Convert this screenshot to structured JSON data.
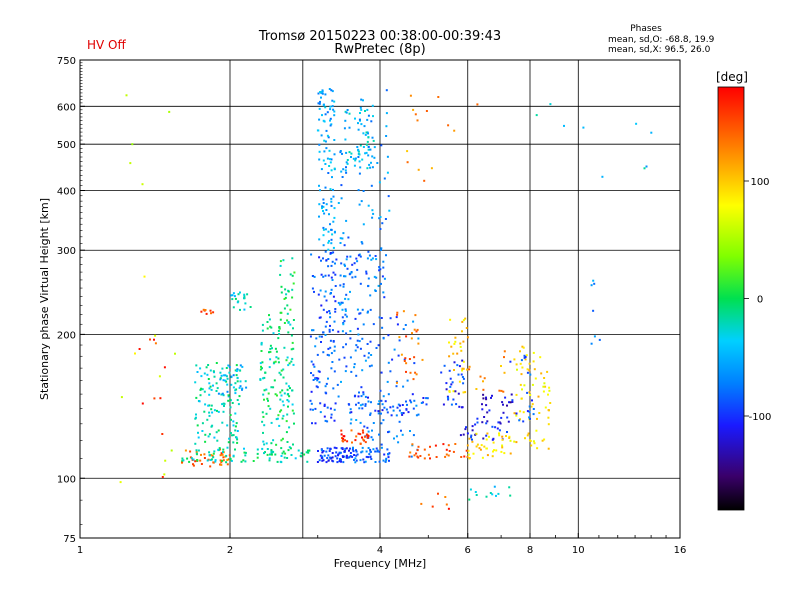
{
  "header": {
    "title": "Tromsø 20150223 00:38:00-00:39:43",
    "subtitle": "RwPretec (8p)",
    "status": "HV Off",
    "status_color": "#e00000",
    "phases_title": "Phases",
    "phases_o": "mean, sd,O: -68.8, 19.9",
    "phases_x": "mean, sd,X:  96.5, 26.0"
  },
  "colorbar": {
    "unit": "[deg]",
    "min": -180,
    "max": 180,
    "ticks": [
      {
        "value": 100,
        "label": "100"
      },
      {
        "value": 0,
        "label": "0"
      },
      {
        "value": -100,
        "label": "-100"
      }
    ]
  },
  "chart_data": {
    "type": "scatter",
    "xlabel": "Frequency [MHz]",
    "ylabel": "Stationary phase Virtual Height [km]",
    "xscale": "log",
    "yscale": "log",
    "xlim": [
      1,
      16
    ],
    "ylim": [
      75,
      750
    ],
    "xticks": [
      {
        "value": 1,
        "label": "1"
      },
      {
        "value": 2,
        "label": "2"
      },
      {
        "value": 4,
        "label": "4"
      },
      {
        "value": 6,
        "label": "6"
      },
      {
        "value": 8,
        "label": "8"
      },
      {
        "value": 10,
        "label": "10"
      },
      {
        "value": 16,
        "label": "16"
      }
    ],
    "xgrid": [
      2,
      2.8,
      4,
      6,
      8,
      10
    ],
    "yticks": [
      {
        "value": 75,
        "label": "75"
      },
      {
        "value": 100,
        "label": "100"
      },
      {
        "value": 200,
        "label": "200"
      },
      {
        "value": 300,
        "label": "300"
      },
      {
        "value": 400,
        "label": "400"
      },
      {
        "value": 500,
        "label": "500"
      },
      {
        "value": 600,
        "label": "600"
      },
      {
        "value": 750,
        "label": "750"
      }
    ],
    "ygrid": [
      100,
      200,
      300,
      400,
      500,
      600
    ],
    "grid": true,
    "point_color_scale": "phase [deg]",
    "clusters": [
      {
        "fmin": 1.6,
        "fmax": 2.0,
        "hmin": 105,
        "hmax": 115,
        "phase": 140,
        "n": 40
      },
      {
        "fmin": 1.6,
        "fmax": 2.9,
        "hmin": 108,
        "hmax": 116,
        "phase": -15,
        "n": 90
      },
      {
        "fmin": 1.7,
        "fmax": 2.1,
        "hmin": 118,
        "hmax": 175,
        "phase": -20,
        "n": 120
      },
      {
        "fmin": 1.9,
        "fmax": 2.2,
        "hmin": 150,
        "hmax": 175,
        "phase": -45,
        "n": 30
      },
      {
        "fmin": 2.3,
        "fmax": 2.7,
        "hmin": 115,
        "hmax": 220,
        "phase": -10,
        "n": 140
      },
      {
        "fmin": 2.5,
        "fmax": 2.7,
        "hmin": 220,
        "hmax": 290,
        "phase": -5,
        "n": 25
      },
      {
        "fmin": 2.0,
        "fmax": 2.2,
        "hmin": 225,
        "hmax": 245,
        "phase": -25,
        "n": 20
      },
      {
        "fmin": 1.75,
        "fmax": 1.85,
        "hmin": 218,
        "hmax": 226,
        "phase": 150,
        "n": 8
      },
      {
        "fmin": 3.0,
        "fmax": 3.5,
        "hmin": 108,
        "hmax": 116,
        "phase": -95,
        "n": 70
      },
      {
        "fmin": 3.5,
        "fmax": 4.2,
        "hmin": 108,
        "hmax": 116,
        "phase": -80,
        "n": 50
      },
      {
        "fmin": 2.9,
        "fmax": 3.3,
        "hmin": 130,
        "hmax": 300,
        "phase": -85,
        "n": 130
      },
      {
        "fmin": 3.0,
        "fmax": 3.25,
        "hmin": 300,
        "hmax": 660,
        "phase": -55,
        "n": 110
      },
      {
        "fmin": 3.3,
        "fmax": 4.1,
        "hmin": 120,
        "hmax": 300,
        "phase": -75,
        "n": 140
      },
      {
        "fmin": 3.4,
        "fmax": 3.9,
        "hmin": 440,
        "hmax": 600,
        "phase": -40,
        "n": 60
      },
      {
        "fmin": 3.3,
        "fmax": 3.5,
        "hmin": 200,
        "hmax": 500,
        "phase": -70,
        "n": 40
      },
      {
        "fmin": 3.6,
        "fmax": 4.2,
        "hmin": 280,
        "hmax": 650,
        "phase": -65,
        "n": 50
      },
      {
        "fmin": 3.3,
        "fmax": 3.8,
        "hmin": 118,
        "hmax": 126,
        "phase": 155,
        "n": 30
      },
      {
        "fmin": 3.4,
        "fmax": 5.0,
        "hmin": 135,
        "hmax": 150,
        "phase": -90,
        "n": 50
      },
      {
        "fmin": 4.0,
        "fmax": 4.8,
        "hmin": 110,
        "hmax": 220,
        "phase": -80,
        "n": 45
      },
      {
        "fmin": 4.3,
        "fmax": 4.9,
        "hmin": 150,
        "hmax": 235,
        "phase": 140,
        "n": 25
      },
      {
        "fmin": 4.5,
        "fmax": 6.0,
        "hmin": 110,
        "hmax": 118,
        "phase": 150,
        "n": 30
      },
      {
        "fmin": 5.5,
        "fmax": 6.0,
        "hmin": 150,
        "hmax": 220,
        "phase": 95,
        "n": 30
      },
      {
        "fmin": 5.3,
        "fmax": 5.9,
        "hmin": 140,
        "hmax": 180,
        "phase": -100,
        "n": 30
      },
      {
        "fmin": 5.8,
        "fmax": 7.2,
        "hmin": 120,
        "hmax": 135,
        "phase": -110,
        "n": 30
      },
      {
        "fmin": 6.4,
        "fmax": 7.4,
        "hmin": 130,
        "hmax": 150,
        "phase": -120,
        "n": 25
      },
      {
        "fmin": 6.0,
        "fmax": 7.5,
        "hmin": 110,
        "hmax": 125,
        "phase": 95,
        "n": 40
      },
      {
        "fmin": 7.4,
        "fmax": 8.8,
        "hmin": 115,
        "hmax": 190,
        "phase": 90,
        "n": 70
      },
      {
        "fmin": 7.3,
        "fmax": 8.2,
        "hmin": 130,
        "hmax": 185,
        "phase": -85,
        "n": 20
      },
      {
        "fmin": 6.0,
        "fmax": 7.2,
        "hmin": 150,
        "hmax": 200,
        "phase": 120,
        "n": 15
      },
      {
        "fmin": 6.0,
        "fmax": 8.0,
        "hmin": 85,
        "hmax": 97,
        "phase": -30,
        "n": 12
      },
      {
        "fmin": 4.8,
        "fmax": 5.5,
        "hmin": 85,
        "hmax": 95,
        "phase": 150,
        "n": 6
      },
      {
        "fmin": 4.5,
        "fmax": 6.3,
        "hmin": 400,
        "hmax": 640,
        "phase": 120,
        "n": 14
      },
      {
        "fmin": 10.5,
        "fmax": 11.2,
        "hmin": 140,
        "hmax": 450,
        "phase": -60,
        "n": 8
      },
      {
        "fmin": 1.2,
        "fmax": 1.6,
        "hmin": 90,
        "hmax": 660,
        "phase": 60,
        "n": 15
      },
      {
        "fmin": 1.3,
        "fmax": 1.5,
        "hmin": 100,
        "hmax": 200,
        "phase": 155,
        "n": 10
      },
      {
        "fmin": 8.0,
        "fmax": 14.5,
        "hmin": 440,
        "hmax": 620,
        "phase": -40,
        "n": 8
      }
    ]
  }
}
